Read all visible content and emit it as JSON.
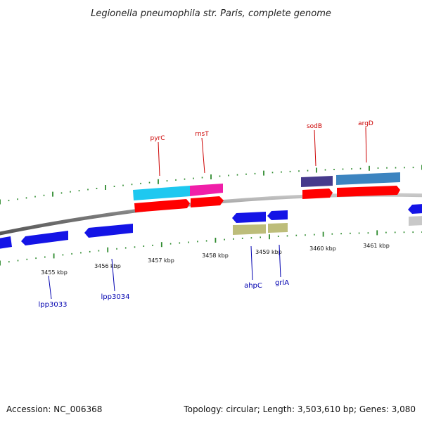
{
  "title": "Legionella pneumophila str. Paris, complete genome",
  "footer": {
    "accession": "Accession: NC_006368",
    "summary": "Topology: circular; Length: 3,503,610 bp; Genes: 3,080"
  },
  "colors": {
    "backbone": "#8a8a8a",
    "tick": "#2e8b2e",
    "cds_forward": "#ff0000",
    "cds_reverse": "#1414e6",
    "label_forward": "#cc0000",
    "label_reverse": "#0000b0"
  },
  "scale": {
    "unit": "kbp",
    "labels": [
      "3455 kbp",
      "3456 kbp",
      "3457 kbp",
      "3458 kbp",
      "3459 kbp",
      "3460 kbp",
      "3461 kbp"
    ]
  },
  "genes": {
    "forward": [
      "pyrC",
      "rnsT",
      "sodB",
      "argD"
    ],
    "reverse": [
      "lpp3033",
      "lpp3034",
      "ahpC",
      "grlA"
    ]
  }
}
